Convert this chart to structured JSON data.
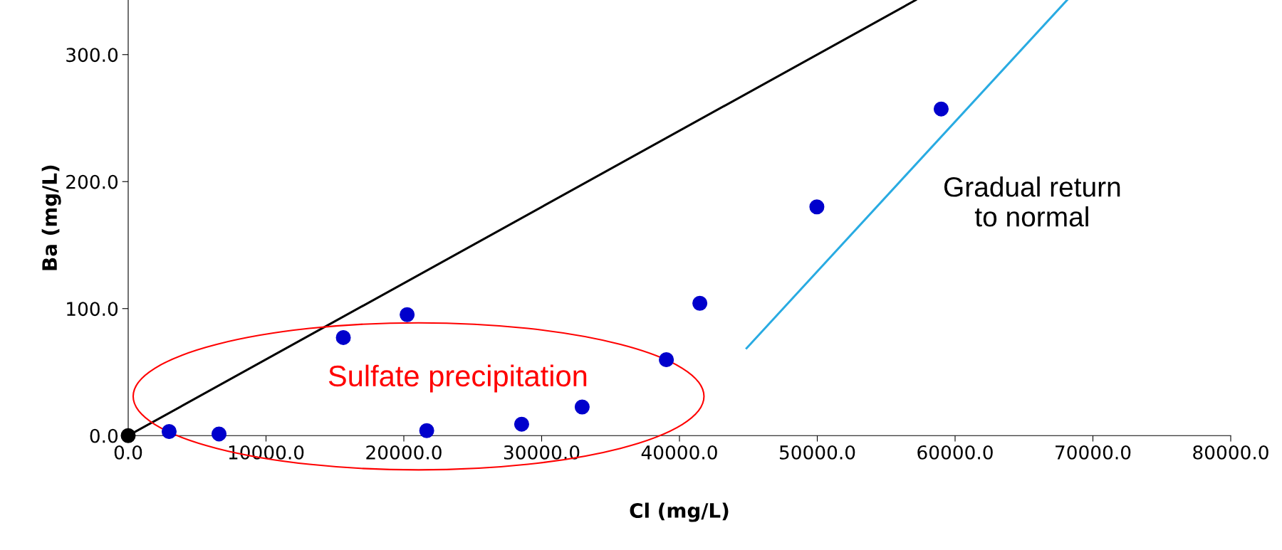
{
  "chart_data": {
    "type": "scatter",
    "xlabel": "Cl (mg/L)",
    "ylabel": "Ba (mg/L)",
    "xlim": [
      0,
      80000
    ],
    "ylim": [
      0,
      343
    ],
    "xticks": [
      {
        "value": 0,
        "label": "0.0"
      },
      {
        "value": 10000,
        "label": "10000.0"
      },
      {
        "value": 20000,
        "label": "20000.0"
      },
      {
        "value": 30000,
        "label": "30000.0"
      },
      {
        "value": 40000,
        "label": "40000.0"
      },
      {
        "value": 50000,
        "label": "50000.0"
      },
      {
        "value": 60000,
        "label": "60000.0"
      },
      {
        "value": 70000,
        "label": "70000.0"
      },
      {
        "value": 80000,
        "label": "80000.0"
      }
    ],
    "yticks": [
      {
        "value": 0,
        "label": "0.0"
      },
      {
        "value": 100,
        "label": "100.0"
      },
      {
        "value": 200,
        "label": "200.0"
      },
      {
        "value": 300,
        "label": "300.0"
      }
    ],
    "grid": false,
    "legend": false,
    "series": [
      {
        "type": "line",
        "marker": "none",
        "color": "#000000",
        "x": [
          0,
          57150
        ],
        "values": [
          0,
          343
        ]
      },
      {
        "type": "line",
        "marker": "none",
        "color": "#29abe2",
        "x": [
          44870,
          68130
        ],
        "values": [
          68.8,
          343
        ]
      },
      {
        "marker": "circle",
        "color": "#000000",
        "x": [
          0
        ],
        "values": [
          0
        ]
      },
      {
        "marker": "circle",
        "color": "#0000cc",
        "x": [
          2970,
          6590,
          15610,
          20240,
          21660,
          28550,
          32940,
          39050,
          41480,
          49970,
          58990
        ],
        "values": [
          3.2,
          1.3,
          77.2,
          95.2,
          3.9,
          9.0,
          22.5,
          59.8,
          104.2,
          180.1,
          257.2
        ]
      }
    ],
    "annotations": [
      "Sulfate precipitation",
      "Gradual return\nto normal"
    ]
  }
}
